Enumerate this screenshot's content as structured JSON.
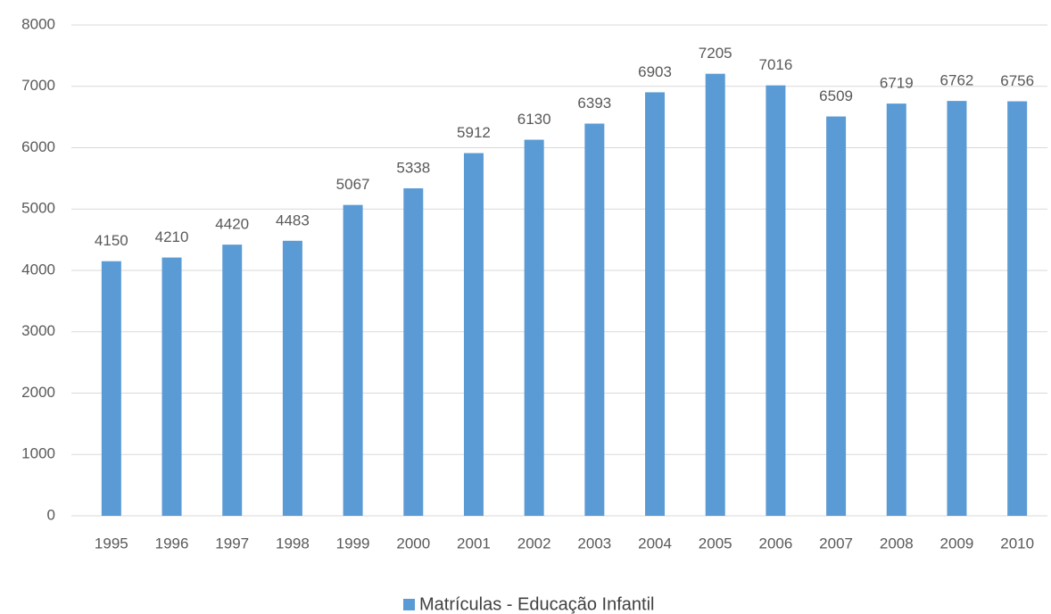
{
  "chart_data": {
    "type": "bar",
    "categories": [
      "1995",
      "1996",
      "1997",
      "1998",
      "1999",
      "2000",
      "2001",
      "2002",
      "2003",
      "2004",
      "2005",
      "2006",
      "2007",
      "2008",
      "2009",
      "2010"
    ],
    "series": [
      {
        "name": "Matrículas - Educação Infantil",
        "color": "#5b9bd5",
        "values": [
          4150,
          4210,
          4420,
          4483,
          5067,
          5338,
          5912,
          6130,
          6393,
          6903,
          7205,
          7016,
          6509,
          6719,
          6762,
          6756
        ]
      }
    ],
    "ylim": [
      0,
      8000
    ],
    "yticks": [
      0,
      1000,
      2000,
      3000,
      4000,
      5000,
      6000,
      7000,
      8000
    ],
    "grid": true,
    "legend": "bottom",
    "data_labels": true
  }
}
